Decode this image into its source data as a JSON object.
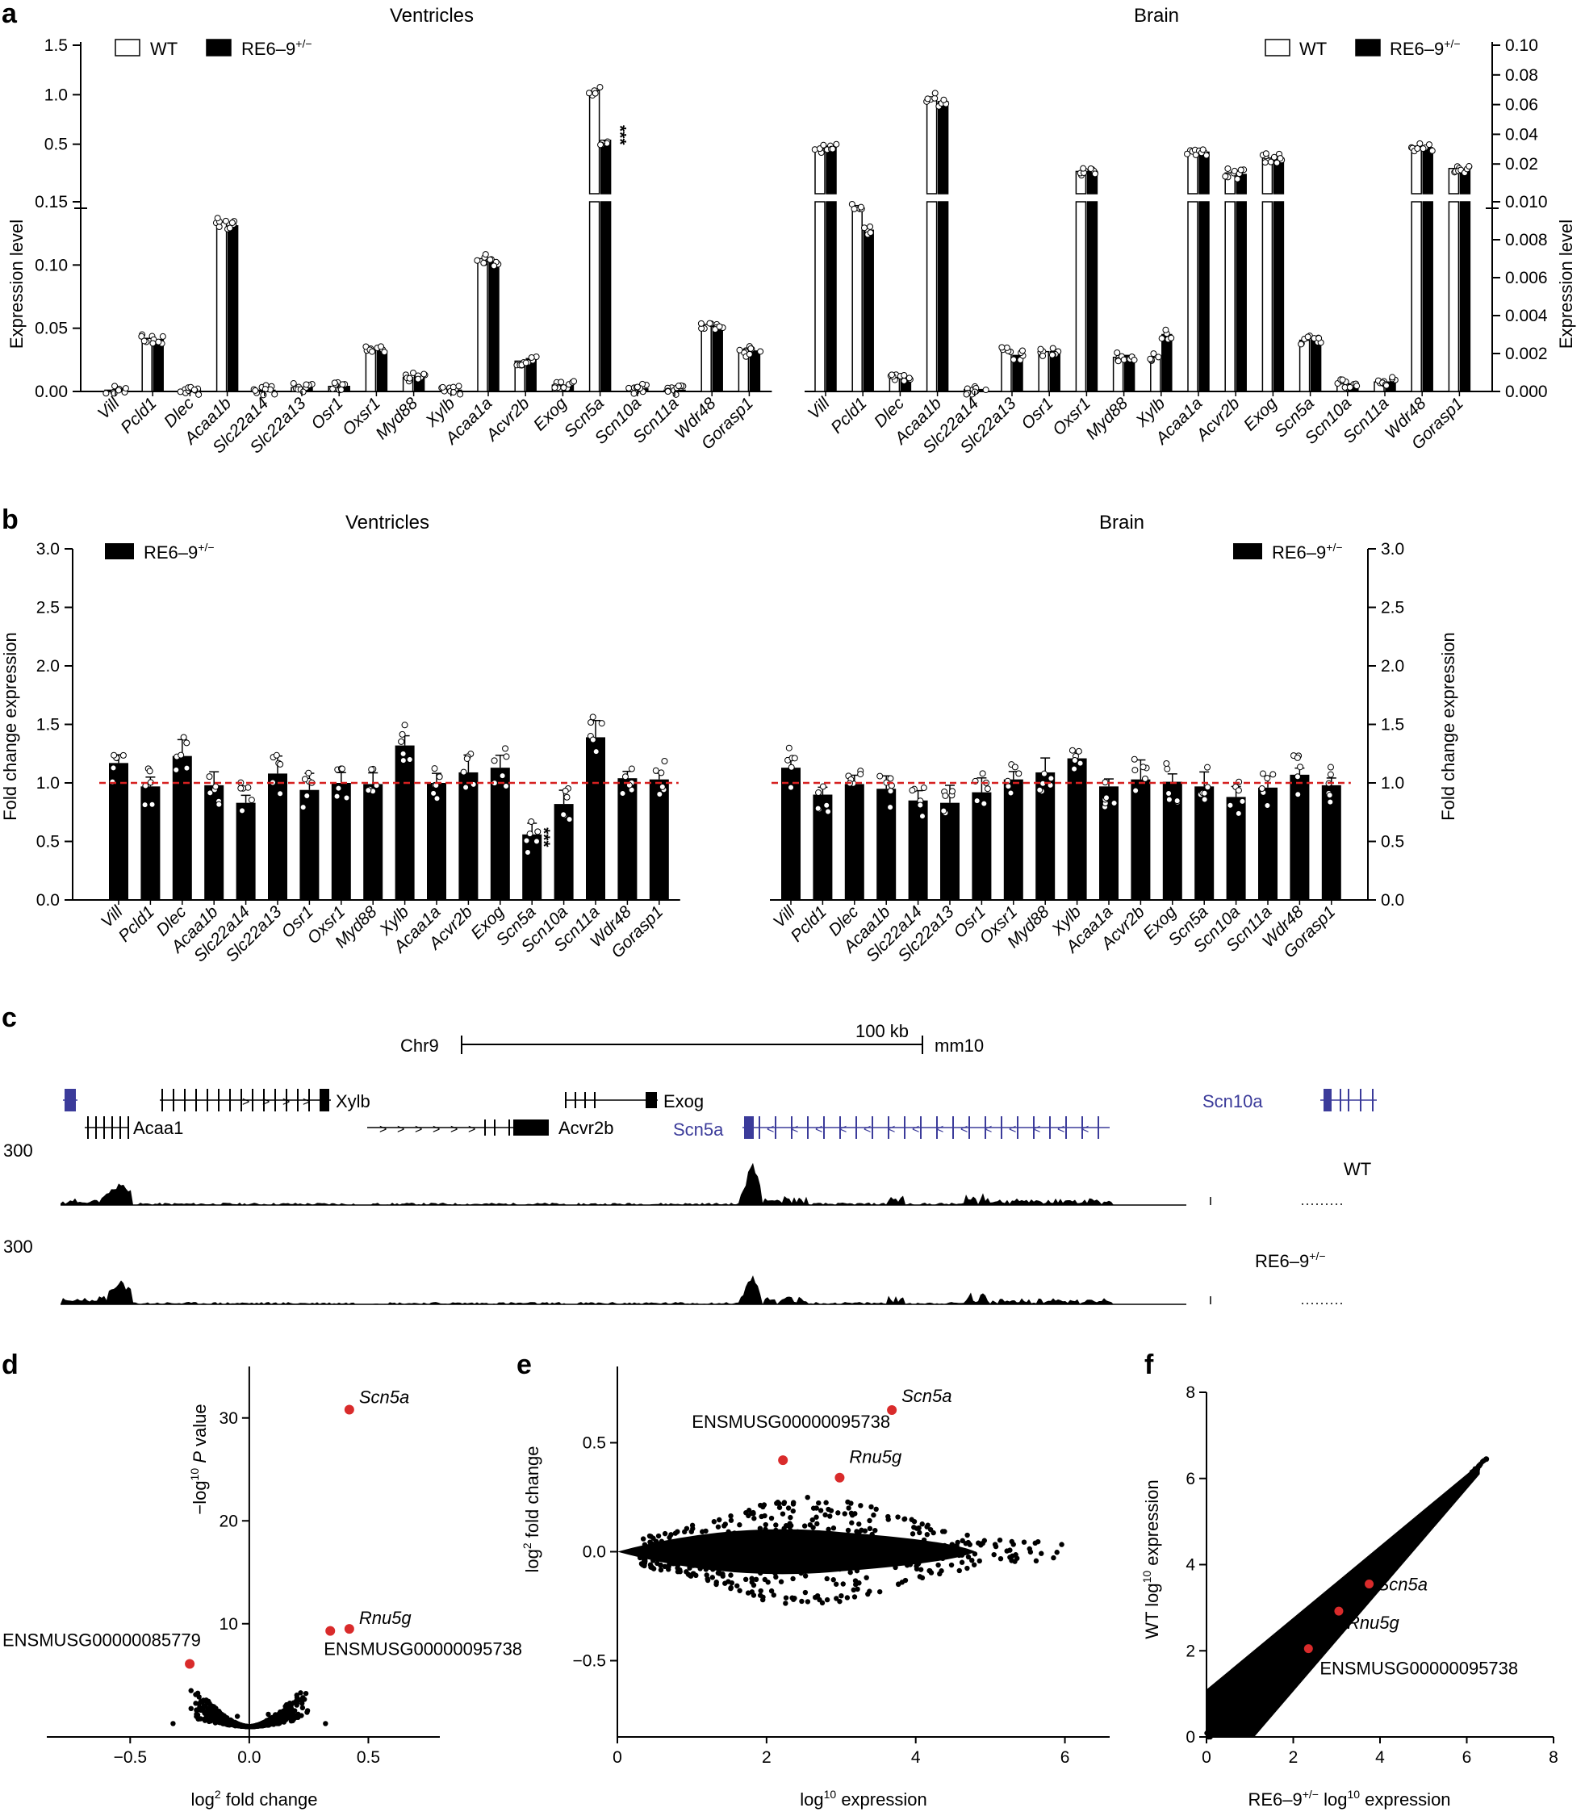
{
  "panel_letters": {
    "a": "a",
    "b": "b",
    "c": "c",
    "d": "d",
    "e": "e",
    "f": "f"
  },
  "legend": {
    "wt": "WT",
    "mut_base": "RE6–9",
    "mut_sup": "+/−"
  },
  "colors": {
    "wt_fill": "#ffffff",
    "mut_fill": "#000000",
    "highlight": "#d92b2b",
    "ref_line": "#d62020",
    "track_gene": "#3b3b9a"
  },
  "genes": [
    "Vill",
    "Pcld1",
    "Dlec",
    "Acaa1b",
    "Slc22a14",
    "Slc22a13",
    "Osr1",
    "Oxsr1",
    "Myd88",
    "Xylb",
    "Acaa1a",
    "Acvr2b",
    "Exog",
    "Scn5a",
    "Scn10a",
    "Scn11a",
    "Wdr48",
    "Gorasp1"
  ],
  "chart_data": [
    {
      "id": "a_ventricles",
      "type": "bar",
      "title": "Ventricles",
      "ylabel": "Expression level",
      "broken_axis": {
        "lower_ylim": [
          0,
          0.15
        ],
        "upper_ylim": [
          0,
          1.5
        ]
      },
      "lower_ticks": [
        "0.00",
        "0.05",
        "0.10",
        "0.15"
      ],
      "upper_ticks": [
        "0.5",
        "1.0",
        "1.5"
      ],
      "series": [
        {
          "name": "WT",
          "values": [
            0.001,
            0.042,
            0.001,
            0.134,
            0.001,
            0.003,
            0.004,
            0.033,
            0.011,
            0.001,
            0.105,
            0.024,
            0.005,
            1.04,
            0.002,
            0.001,
            0.053,
            0.031
          ]
        },
        {
          "name": "RE6–9+/−",
          "values": [
            0.001,
            0.041,
            0.001,
            0.131,
            0.001,
            0.003,
            0.004,
            0.032,
            0.012,
            0.001,
            0.103,
            0.026,
            0.005,
            0.54,
            0.002,
            0.001,
            0.052,
            0.032
          ]
        }
      ],
      "annotations": [
        {
          "gene": "Scn5a",
          "text": "***"
        }
      ]
    },
    {
      "id": "a_brain",
      "type": "bar",
      "title": "Brain",
      "ylabel": "Expression level",
      "broken_axis": {
        "lower_ylim": [
          0,
          0.01
        ],
        "upper_ylim": [
          0,
          0.1
        ]
      },
      "lower_ticks": [
        "0.000",
        "0.002",
        "0.004",
        "0.006",
        "0.008",
        "0.010"
      ],
      "upper_ticks": [
        "0.02",
        "0.04",
        "0.06",
        "0.08",
        "0.10"
      ],
      "series": [
        {
          "name": "WT",
          "values": [
            0.03,
            0.0098,
            0.0007,
            0.065,
            0.0001,
            0.0021,
            0.0021,
            0.015,
            0.0018,
            0.0018,
            0.029,
            0.014,
            0.024,
            0.0027,
            0.0004,
            0.0005,
            0.032,
            0.017
          ]
        },
        {
          "name": "RE6–9+/−",
          "values": [
            0.032,
            0.0085,
            0.0007,
            0.062,
            0.0001,
            0.0019,
            0.0021,
            0.015,
            0.0019,
            0.003,
            0.028,
            0.013,
            0.024,
            0.0028,
            0.0004,
            0.0005,
            0.031,
            0.016
          ]
        }
      ]
    },
    {
      "id": "b_ventricles",
      "type": "bar",
      "title": "Ventricles",
      "ylabel": "Fold change expression",
      "ylim": [
        0,
        3.0
      ],
      "ticks": [
        "0.0",
        "0.5",
        "1.0",
        "1.5",
        "2.0",
        "2.5",
        "3.0"
      ],
      "reference_line": 1.0,
      "series": [
        {
          "name": "RE6–9+/−",
          "values": [
            1.17,
            0.97,
            1.23,
            0.98,
            0.83,
            1.08,
            0.94,
            1.0,
            0.99,
            1.32,
            1.0,
            1.09,
            1.13,
            0.56,
            0.82,
            1.39,
            1.04,
            1.03
          ]
        }
      ],
      "annotations": [
        {
          "gene": "Scn5a",
          "text": "***"
        }
      ]
    },
    {
      "id": "b_brain",
      "type": "bar",
      "title": "Brain",
      "ylabel": "Fold change expression",
      "ylim": [
        0,
        3.0
      ],
      "ticks": [
        "0.0",
        "0.5",
        "1.0",
        "1.5",
        "2.0",
        "2.5",
        "3.0"
      ],
      "reference_line": 1.0,
      "series": [
        {
          "name": "RE6–9+/−",
          "values": [
            1.13,
            0.9,
            0.99,
            0.95,
            0.85,
            0.83,
            0.92,
            1.03,
            1.09,
            1.21,
            0.97,
            1.03,
            1.01,
            0.97,
            0.88,
            0.96,
            1.07,
            0.98
          ]
        }
      ]
    },
    {
      "id": "c_track",
      "type": "genome_track",
      "chrom": "Chr9",
      "scale_label": "100 kb",
      "assembly": "mm10",
      "genes": [
        "Acaa1",
        "Xylb",
        "Acvr2b",
        "Exog",
        "Scn5a",
        "Scn10a"
      ],
      "tracks": [
        {
          "name": "WT",
          "ymax": "300"
        },
        {
          "name": "RE6–9+/−",
          "ymax": "300"
        }
      ]
    },
    {
      "id": "d_volcano",
      "type": "scatter",
      "xlabel_base": "log",
      "xlabel_sup": "2",
      "xlabel_rest": " fold change",
      "ylabel_pre": "−log",
      "ylabel_sup": "10",
      "ylabel_p": "P",
      "ylabel_rest": " value",
      "xlim": [
        -0.85,
        0.8
      ],
      "ylim": [
        -1,
        35
      ],
      "xticks": [
        "−0.5",
        "0.0",
        "0.5"
      ],
      "yticks": [
        "10",
        "20",
        "30"
      ],
      "highlight": [
        {
          "label": "Scn5a",
          "x": 0.42,
          "y": 30.8
        },
        {
          "label": "Rnu5g",
          "x": 0.42,
          "y": 9.5
        },
        {
          "label": "ENSMUSG00000095738",
          "x": 0.34,
          "y": 9.3
        },
        {
          "label": "ENSMUSG00000085779",
          "x": -0.25,
          "y": 6.1
        }
      ]
    },
    {
      "id": "e_ma",
      "type": "scatter",
      "xlabel_base": "log",
      "xlabel_sup": "10",
      "xlabel_rest": " expression",
      "ylabel_base": "log",
      "ylabel_sup": "2",
      "ylabel_rest": " fold change",
      "xlim": [
        0,
        6.6
      ],
      "ylim": [
        -0.85,
        0.85
      ],
      "xticks": [
        "0",
        "2",
        "4",
        "6"
      ],
      "yticks": [
        "−0.5",
        "0.0",
        "0.5"
      ],
      "highlight": [
        {
          "label": "Scn5a",
          "x": 3.68,
          "y": 0.65
        },
        {
          "label": "ENSMUSG00000095738",
          "x": 2.22,
          "y": 0.42
        },
        {
          "label": "Rnu5g",
          "x": 2.98,
          "y": 0.34
        }
      ]
    },
    {
      "id": "f_scatter",
      "type": "scatter",
      "xlabel_base": "RE6–9",
      "xlabel_sup": "+/−",
      "xlabel_rest": " log",
      "xlabel_sup2": "10",
      "xlabel_tail": " expression",
      "ylabel_base": "WT log",
      "ylabel_sup": "10",
      "ylabel_rest": " expression",
      "xlim": [
        0,
        8
      ],
      "ylim": [
        0,
        8
      ],
      "xticks": [
        "0",
        "2",
        "4",
        "6",
        "8"
      ],
      "yticks": [
        "0",
        "2",
        "4",
        "6",
        "8"
      ],
      "highlight": [
        {
          "label": "Scn5a",
          "x": 3.75,
          "y": 3.55
        },
        {
          "label": "Rnu5g",
          "x": 3.05,
          "y": 2.92
        },
        {
          "label": "ENSMUSG00000095738",
          "x": 2.35,
          "y": 2.05
        }
      ]
    }
  ]
}
